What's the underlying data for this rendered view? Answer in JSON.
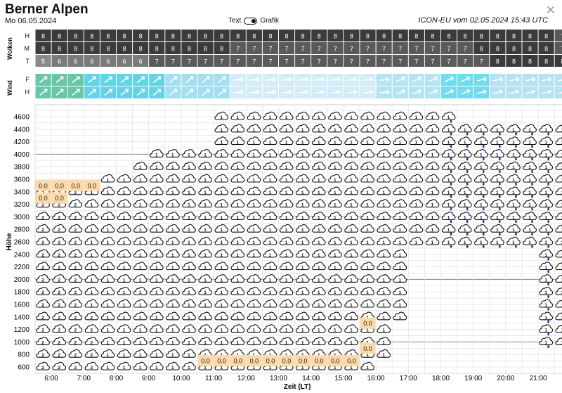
{
  "header": {
    "title": "Berner Alpen",
    "date": "Mo 06.05.2024",
    "toggle_text": "Text",
    "toggle_graph": "Grafik",
    "source": "ICON-EU vom 02.05.2024 15:43 UTC"
  },
  "chart_data": {
    "type": "heatmap",
    "xlabel": "Zeit (LT)",
    "ylabel": "Höhe",
    "x_ticks": [
      "6:00",
      "7:00",
      "8:00",
      "9:00",
      "10:00",
      "11:00",
      "12:00",
      "13:00",
      "14:00",
      "15:00",
      "16:00",
      "17:00",
      "18:00",
      "19:00",
      "20:00",
      "21:00"
    ],
    "y_ticks": [
      4600,
      4400,
      4200,
      4000,
      3800,
      3600,
      3400,
      3200,
      3000,
      2800,
      2600,
      2400,
      2200,
      2000,
      1800,
      1600,
      1400,
      1200,
      1000,
      800,
      600
    ],
    "clouds": {
      "label": "Wolken",
      "row_labels": [
        "H",
        "M",
        "T"
      ],
      "H": [
        "8",
        "8",
        "8",
        "8",
        "8",
        "8",
        "8",
        "8",
        "8",
        "8",
        "8",
        "8",
        "8",
        "8",
        "8",
        "8",
        "8",
        "8",
        "8",
        "8",
        "8",
        "8",
        "8",
        "8",
        "8",
        "8",
        "8",
        "8",
        "8",
        "8",
        "8",
        "8",
        "7"
      ],
      "M": [
        "8",
        "8",
        "8",
        "8",
        "8",
        "8",
        "8",
        "8",
        "8",
        "8",
        "8",
        "8",
        "7",
        "7",
        "7",
        "7",
        "7",
        "7",
        "7",
        "7",
        "7",
        "7",
        "7",
        "7",
        "7",
        "7",
        "7",
        "8",
        "8",
        "8",
        "8",
        "8",
        "7"
      ],
      "T": [
        "5",
        "6",
        "6",
        "6",
        "6",
        "6",
        "6",
        "7",
        "7",
        "7",
        "7",
        "7",
        "7",
        "7",
        "7",
        "7",
        "7",
        "7",
        "7",
        "7",
        "7",
        "7",
        "7",
        "7",
        "7",
        "7",
        "7",
        "7",
        "8",
        "8",
        "8",
        "8",
        "8"
      ]
    },
    "wind": {
      "label": "Wind",
      "row_labels": [
        "F",
        "H"
      ]
    },
    "profile": {
      "top_m": [
        3500,
        3500,
        3500,
        3500,
        3700,
        3700,
        3900,
        4100,
        4100,
        4100,
        4100,
        4700,
        4700,
        4700,
        4700,
        4700,
        4700,
        4700,
        4700,
        4700,
        4700,
        4700,
        4700,
        4700,
        4700,
        4700,
        4500,
        4500,
        4500,
        4500,
        4500,
        4500,
        4500
      ],
      "bottom_m": [
        500,
        500,
        500,
        500,
        500,
        500,
        500,
        500,
        500,
        500,
        500,
        500,
        500,
        500,
        500,
        500,
        500,
        500,
        500,
        500,
        500,
        700,
        1300,
        2500,
        2500,
        2500,
        2500,
        2500,
        2500,
        2500,
        2500,
        900,
        900
      ],
      "rain_from_col": 25
    },
    "values": [
      {
        "label": "0.0",
        "col": 0,
        "alt": 3500
      },
      {
        "label": "0.0",
        "col": 1,
        "alt": 3500
      },
      {
        "label": "0.0",
        "col": 2,
        "alt": 3500
      },
      {
        "label": "0.0",
        "col": 3,
        "alt": 3500
      },
      {
        "label": "0.0",
        "col": 0,
        "alt": 3300
      },
      {
        "label": "0.0",
        "col": 1,
        "alt": 3300
      },
      {
        "label": "0.0",
        "col": 10,
        "alt": 700
      },
      {
        "label": "0.0",
        "col": 11,
        "alt": 700
      },
      {
        "label": "0.0",
        "col": 12,
        "alt": 700
      },
      {
        "label": "0.0",
        "col": 13,
        "alt": 700
      },
      {
        "label": "0.0",
        "col": 14,
        "alt": 700
      },
      {
        "label": "0.0",
        "col": 15,
        "alt": 700
      },
      {
        "label": "0.0",
        "col": 16,
        "alt": 700
      },
      {
        "label": "0.0",
        "col": 17,
        "alt": 700
      },
      {
        "label": "0.0",
        "col": 18,
        "alt": 700
      },
      {
        "label": "0.0",
        "col": 19,
        "alt": 700
      },
      {
        "label": "0.0",
        "col": 20,
        "alt": 1300
      },
      {
        "label": "0.0",
        "col": 20,
        "alt": 900
      }
    ]
  }
}
